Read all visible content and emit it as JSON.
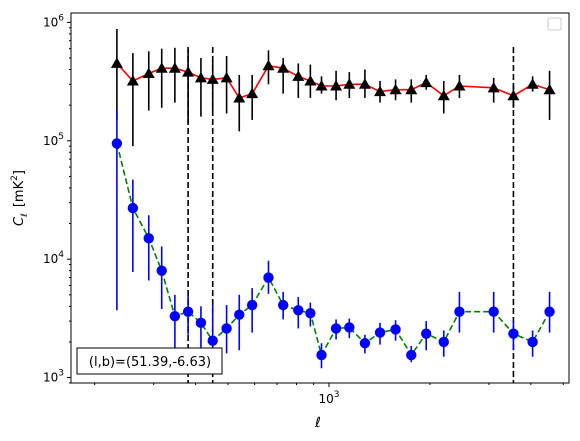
{
  "chart_data": {
    "type": "scatter",
    "xlabel": "ℓ",
    "ylabel": "C",
    "ylabel_sub": "ℓ",
    "ylabel_unit": "[mK",
    "ylabel_unit_sup": "2",
    "ylabel_unit_close": "]",
    "x_scale": "log",
    "y_scale": "log",
    "xlim": [
      170,
      5200
    ],
    "ylim": [
      900,
      1200000
    ],
    "x_ticks": [
      {
        "value": 1000,
        "base": "10",
        "exp": "3"
      }
    ],
    "y_ticks": [
      {
        "value": 1000,
        "base": "10",
        "exp": "3"
      },
      {
        "value": 10000,
        "base": "10",
        "exp": "4"
      },
      {
        "value": 100000,
        "base": "10",
        "exp": "5"
      },
      {
        "value": 1000000,
        "base": "10",
        "exp": "6"
      }
    ],
    "vlines": [
      380,
      450,
      3550
    ],
    "annotation": "(l,b)=(51.39,-6.63)",
    "legend_position": "upper right",
    "legend_entries": [],
    "grid": false,
    "series": [
      {
        "marker": "triangle",
        "marker_color": "#000000",
        "line_color": "#ff0000",
        "errorbar_color": "#000000",
        "line_style": "solid",
        "x": [
          233,
          260,
          290,
          317,
          347,
          380,
          415,
          450,
          495,
          540,
          590,
          660,
          730,
          810,
          880,
          950,
          1050,
          1150,
          1280,
          1420,
          1580,
          1760,
          1950,
          2200,
          2450,
          3100,
          3550,
          4050,
          4550
        ],
        "y": [
          450000,
          320000,
          370000,
          410000,
          410000,
          380000,
          340000,
          330000,
          340000,
          230000,
          250000,
          430000,
          410000,
          350000,
          320000,
          290000,
          290000,
          300000,
          300000,
          260000,
          270000,
          270000,
          310000,
          240000,
          290000,
          280000,
          240000,
          300000,
          270000
        ],
        "y_low": [
          150000,
          90000,
          180000,
          190000,
          210000,
          140000,
          160000,
          180000,
          170000,
          120000,
          150000,
          300000,
          250000,
          230000,
          230000,
          250000,
          220000,
          230000,
          230000,
          210000,
          220000,
          210000,
          270000,
          170000,
          230000,
          210000,
          190000,
          260000,
          150000
        ],
        "y_high": [
          880000,
          550000,
          570000,
          600000,
          610000,
          590000,
          500000,
          480000,
          520000,
          360000,
          360000,
          580000,
          500000,
          450000,
          440000,
          350000,
          390000,
          380000,
          400000,
          320000,
          330000,
          330000,
          360000,
          320000,
          360000,
          340000,
          290000,
          350000,
          390000
        ]
      },
      {
        "marker": "circle",
        "marker_color": "#0000ff",
        "line_color": "#008000",
        "errorbar_color": "#0000ff",
        "line_style": "dashed",
        "x": [
          233,
          260,
          290,
          317,
          347,
          380,
          415,
          450,
          495,
          540,
          590,
          660,
          730,
          810,
          880,
          950,
          1050,
          1150,
          1280,
          1420,
          1580,
          1760,
          1950,
          2200,
          2450,
          3100,
          3550,
          4050,
          4550
        ],
        "y": [
          95000,
          27000,
          15000,
          8000,
          3300,
          3600,
          2900,
          2050,
          2600,
          3400,
          4100,
          7000,
          4100,
          3700,
          3500,
          1550,
          2600,
          2650,
          1950,
          2400,
          2550,
          1550,
          2350,
          2000,
          3600,
          3600,
          2350,
          2000,
          3600
        ],
        "y_low": [
          3700,
          7800,
          6600,
          3800,
          1600,
          2300,
          1650,
          1150,
          1600,
          1700,
          2400,
          5100,
          3100,
          2600,
          2700,
          1200,
          2100,
          2150,
          1600,
          1900,
          2050,
          1350,
          1700,
          1500,
          2400,
          2400,
          1700,
          1500,
          2400
        ],
        "y_high": [
          185000,
          47000,
          23500,
          12800,
          5000,
          4900,
          4000,
          4100,
          4100,
          5000,
          5700,
          9700,
          5300,
          4800,
          4300,
          1950,
          3100,
          3150,
          2300,
          2900,
          3050,
          1850,
          3000,
          2500,
          5300,
          5300,
          3000,
          2500,
          5300
        ]
      }
    ]
  }
}
